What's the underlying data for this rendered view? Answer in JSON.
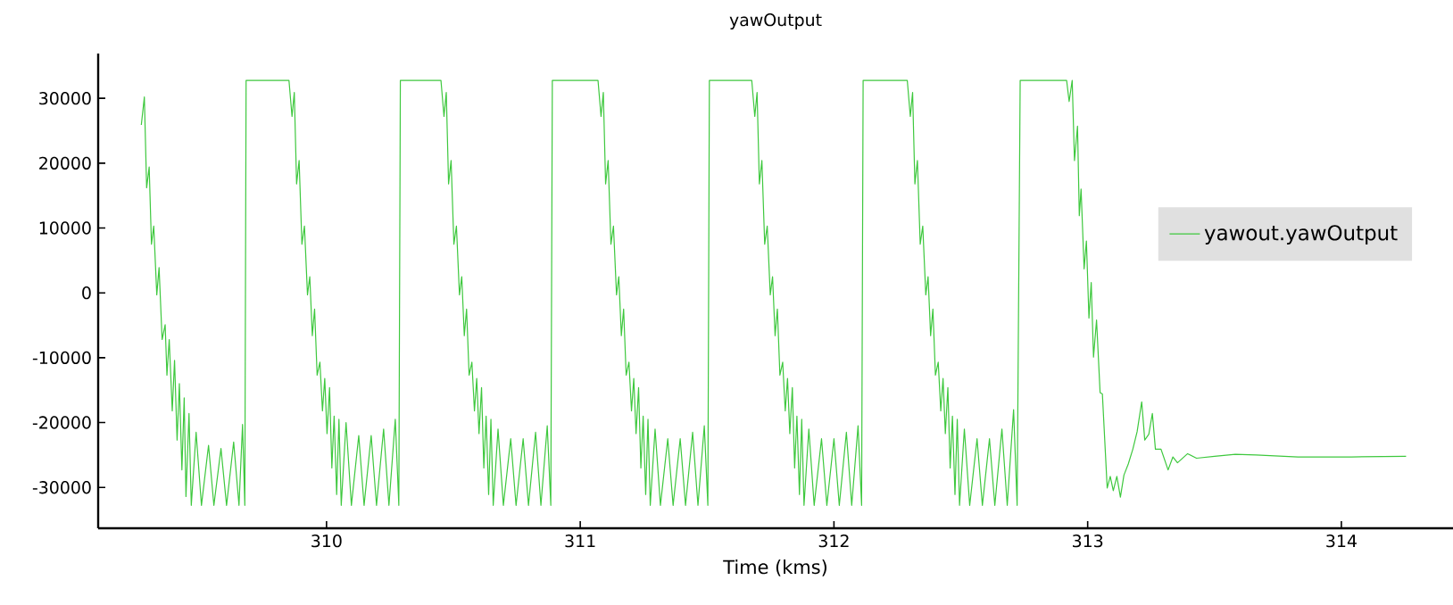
{
  "chart_data": {
    "type": "line",
    "title": "yawOutput",
    "xlabel": "Time (kms)",
    "xlim": [
      309.1,
      314.44
    ],
    "ylim": [
      -36300,
      36900
    ],
    "xticks": [
      310,
      311,
      312,
      313,
      314
    ],
    "yticks": [
      -30000,
      -20000,
      -10000,
      0,
      10000,
      20000,
      30000
    ],
    "legend": "right",
    "grid": false,
    "series": [
      {
        "name": "yawout.yawOutput",
        "color": "#3ec83e",
        "x": [
          309.27,
          309.282,
          309.291,
          309.301,
          309.31,
          309.319,
          309.331,
          309.34,
          309.352,
          309.364,
          309.371,
          309.38,
          309.392,
          309.401,
          309.411,
          309.42,
          309.43,
          309.439,
          309.446,
          309.458,
          309.467,
          309.486,
          309.507,
          309.535,
          309.556,
          309.584,
          309.606,
          309.634,
          309.655,
          309.669,
          309.678,
          309.683,
          309.852,
          309.864,
          309.873,
          309.882,
          309.892,
          309.903,
          309.913,
          309.925,
          309.934,
          309.944,
          309.953,
          309.963,
          309.974,
          309.984,
          309.993,
          310.002,
          310.012,
          310.021,
          310.03,
          310.04,
          310.049,
          310.058,
          310.077,
          310.098,
          310.127,
          310.148,
          310.176,
          310.197,
          310.225,
          310.246,
          310.271,
          310.285,
          310.291,
          310.451,
          310.463,
          310.472,
          310.481,
          310.491,
          310.502,
          310.512,
          310.524,
          310.533,
          310.543,
          310.552,
          310.562,
          310.573,
          310.583,
          310.592,
          310.601,
          310.611,
          310.62,
          310.629,
          310.639,
          310.648,
          310.657,
          310.676,
          310.697,
          310.726,
          310.747,
          310.775,
          310.796,
          310.824,
          310.845,
          310.87,
          310.884,
          310.89,
          311.07,
          311.082,
          311.091,
          311.1,
          311.11,
          311.121,
          311.131,
          311.143,
          311.152,
          311.162,
          311.171,
          311.181,
          311.192,
          311.202,
          311.211,
          311.22,
          311.23,
          311.239,
          311.248,
          311.258,
          311.267,
          311.276,
          311.295,
          311.316,
          311.345,
          311.366,
          311.394,
          311.415,
          311.443,
          311.464,
          311.489,
          311.503,
          311.509,
          311.676,
          311.688,
          311.697,
          311.706,
          311.716,
          311.727,
          311.737,
          311.749,
          311.758,
          311.768,
          311.777,
          311.787,
          311.798,
          311.808,
          311.817,
          311.826,
          311.836,
          311.845,
          311.854,
          311.864,
          311.873,
          311.882,
          311.901,
          311.922,
          311.951,
          311.972,
          312.0,
          312.021,
          312.049,
          312.07,
          312.095,
          312.109,
          312.115,
          312.289,
          312.301,
          312.31,
          312.319,
          312.329,
          312.34,
          312.35,
          312.362,
          312.371,
          312.381,
          312.39,
          312.4,
          312.411,
          312.421,
          312.43,
          312.439,
          312.449,
          312.458,
          312.467,
          312.477,
          312.486,
          312.495,
          312.514,
          312.535,
          312.564,
          312.585,
          312.613,
          312.634,
          312.662,
          312.683,
          312.708,
          312.722,
          312.734,
          312.917,
          312.927,
          312.939,
          312.948,
          312.96,
          312.967,
          312.974,
          312.986,
          312.995,
          313.005,
          313.014,
          313.023,
          313.035,
          313.049,
          313.058,
          313.077,
          313.089,
          313.101,
          313.115,
          313.129,
          313.143,
          313.16,
          313.178,
          313.195,
          313.213,
          313.225,
          313.241,
          313.255,
          313.267,
          313.289,
          313.317,
          313.336,
          313.354,
          313.394,
          313.429,
          313.5,
          313.582,
          313.664,
          313.829,
          314.04,
          314.255
        ],
        "values": [
          25900,
          30200,
          16200,
          19400,
          7500,
          10300,
          -300,
          3900,
          -7200,
          -4900,
          -12700,
          -7200,
          -18200,
          -10400,
          -22700,
          -14000,
          -27300,
          -16200,
          -31400,
          -18600,
          -32767,
          -21500,
          -32767,
          -23500,
          -32767,
          -24000,
          -32767,
          -23000,
          -32767,
          -20300,
          -32767,
          32767,
          32767,
          27200,
          30900,
          16800,
          20400,
          7500,
          10300,
          -300,
          2500,
          -6600,
          -2500,
          -12700,
          -10700,
          -18200,
          -13200,
          -21700,
          -14600,
          -27000,
          -19000,
          -31100,
          -19500,
          -32767,
          -20000,
          -32767,
          -22000,
          -32767,
          -22000,
          -32767,
          -21000,
          -32767,
          -19500,
          -32767,
          32767,
          32767,
          27200,
          30900,
          16800,
          20400,
          7500,
          10300,
          -300,
          2500,
          -6600,
          -2500,
          -12700,
          -10700,
          -18200,
          -13200,
          -21700,
          -14600,
          -27000,
          -19000,
          -31100,
          -19500,
          -32767,
          -21000,
          -32767,
          -22500,
          -32767,
          -22500,
          -32767,
          -21500,
          -32767,
          -20500,
          -32767,
          32767,
          32767,
          27200,
          30900,
          16800,
          20400,
          7500,
          10300,
          -300,
          2500,
          -6600,
          -2500,
          -12700,
          -10700,
          -18200,
          -13200,
          -21700,
          -14600,
          -27000,
          -19000,
          -31100,
          -19500,
          -32767,
          -21000,
          -32767,
          -22500,
          -32767,
          -22500,
          -32767,
          -21500,
          -32767,
          -20500,
          -32767,
          32767,
          32767,
          27200,
          30900,
          16800,
          20400,
          7500,
          10300,
          -300,
          2500,
          -6600,
          -2500,
          -12700,
          -10700,
          -18200,
          -13200,
          -21700,
          -14600,
          -27000,
          -19000,
          -31100,
          -19500,
          -32767,
          -21000,
          -32767,
          -22500,
          -32767,
          -22500,
          -32767,
          -21500,
          -32767,
          -20500,
          -32767,
          32767,
          32767,
          27200,
          30900,
          16800,
          20400,
          7500,
          10300,
          -300,
          2500,
          -6600,
          -2500,
          -12700,
          -10700,
          -18200,
          -13200,
          -21700,
          -14600,
          -27000,
          -19000,
          -31100,
          -19500,
          -32767,
          -21000,
          -32767,
          -22500,
          -32767,
          -22500,
          -32767,
          -21000,
          -32767,
          -18000,
          -32767,
          32767,
          32767,
          29500,
          32767,
          20400,
          25700,
          11900,
          16000,
          3700,
          8000,
          -3900,
          1600,
          -9900,
          -4200,
          -15400,
          -15600,
          -30100,
          -28300,
          -30500,
          -28300,
          -31500,
          -28100,
          -26400,
          -24100,
          -21400,
          -16800,
          -22700,
          -21800,
          -18600,
          -24100,
          -24100,
          -27300,
          -25300,
          -26200,
          -24800,
          -25500,
          -25200,
          -24900,
          -25000,
          -25300,
          -25300,
          -25200
        ]
      }
    ]
  }
}
